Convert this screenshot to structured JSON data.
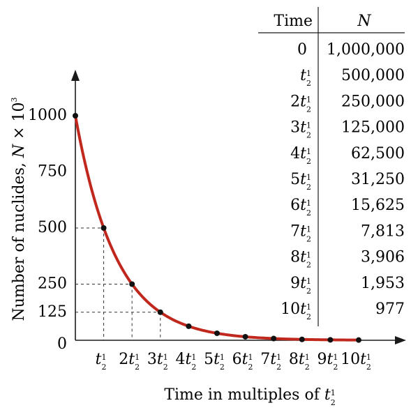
{
  "chart_data": {
    "type": "line",
    "xlabel": "Time in multiples of t½",
    "ylabel": "Number of nuclides, N × 10³",
    "x": [
      0,
      1,
      2,
      3,
      4,
      5,
      6,
      7,
      8,
      9,
      10
    ],
    "x_tick_labels": [
      "",
      "t½",
      "2t½",
      "3t½",
      "4t½",
      "5t½",
      "6t½",
      "7t½",
      "8t½",
      "9t½",
      "10t½"
    ],
    "y_ticks": [
      0,
      125,
      250,
      500,
      750,
      1000
    ],
    "values": [
      1000,
      500,
      250,
      125,
      62.5,
      31.25,
      15.625,
      7.813,
      3.906,
      1.953,
      0.977
    ],
    "ylim": [
      0,
      1000
    ],
    "xlim": [
      0,
      10
    ],
    "dashed_guides_at": [
      1,
      2,
      3
    ],
    "curve_color": "#c0281e",
    "point_color": "#111111"
  },
  "table": {
    "headers": [
      "Time",
      "N"
    ],
    "rows": [
      {
        "coef": "",
        "time": "0",
        "n": "1,000,000"
      },
      {
        "coef": "",
        "time": "t½",
        "n": "500,000"
      },
      {
        "coef": "2",
        "time": "t½",
        "n": "250,000"
      },
      {
        "coef": "3",
        "time": "t½",
        "n": "125,000"
      },
      {
        "coef": "4",
        "time": "t½",
        "n": "62,500"
      },
      {
        "coef": "5",
        "time": "t½",
        "n": "31,250"
      },
      {
        "coef": "6",
        "time": "t½",
        "n": "15,625"
      },
      {
        "coef": "7",
        "time": "t½",
        "n": "7,813"
      },
      {
        "coef": "8",
        "time": "t½",
        "n": "3,906"
      },
      {
        "coef": "9",
        "time": "t½",
        "n": "1,953"
      },
      {
        "coef": "10",
        "time": "t½",
        "n": "977"
      }
    ]
  }
}
